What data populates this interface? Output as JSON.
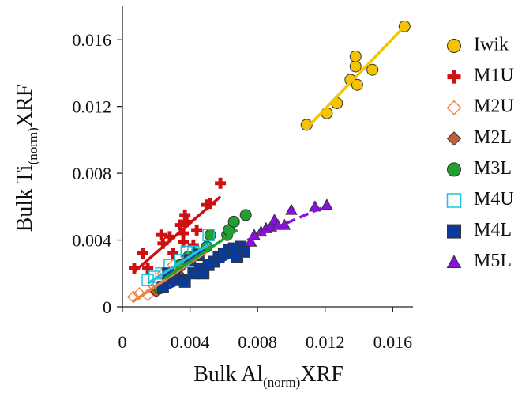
{
  "chart_data": {
    "type": "scatter",
    "x_label": {
      "main": "Bulk Al",
      "subscript": "(norm)",
      "suffix": "XRF"
    },
    "y_label": {
      "main": "Bulk Ti",
      "subscript": "(norm)",
      "suffix": "XRF"
    },
    "xlim": [
      0,
      0.0172
    ],
    "ylim": [
      0,
      0.018
    ],
    "xticks": [
      0,
      0.004,
      0.008,
      0.012,
      0.016
    ],
    "yticks": [
      0,
      0.004,
      0.008,
      0.012,
      0.016
    ],
    "series": [
      {
        "name": "Iwik",
        "color": "#f5c400",
        "marker": "circle",
        "x": [
          0.0109,
          0.0121,
          0.0127,
          0.0135,
          0.0138,
          0.0138,
          0.0139,
          0.0148,
          0.0167
        ],
        "values": [
          0.0109,
          0.0116,
          0.0122,
          0.0136,
          0.0144,
          0.015,
          0.0133,
          0.0142,
          0.0168
        ],
        "trend": {
          "x": [
            0.0109,
            0.0167
          ],
          "y": [
            0.0107,
            0.0168
          ]
        }
      },
      {
        "name": "M1U",
        "color": "#d01010",
        "marker": "cross",
        "x": [
          0.0007,
          0.0012,
          0.0015,
          0.0023,
          0.0024,
          0.0028,
          0.003,
          0.0034,
          0.0036,
          0.0037,
          0.0038,
          0.0036,
          0.0044,
          0.005,
          0.0052,
          0.0058,
          0.0042
        ],
        "values": [
          0.0023,
          0.0032,
          0.0023,
          0.0043,
          0.0038,
          0.0042,
          0.0032,
          0.0049,
          0.0044,
          0.0055,
          0.0051,
          0.0039,
          0.0046,
          0.0061,
          0.0062,
          0.0074,
          0.0037
        ],
        "trend": {
          "x": [
            0.0007,
            0.0058
          ],
          "y": [
            0.0021,
            0.0066
          ]
        }
      },
      {
        "name": "M2U",
        "color": "#f08040",
        "marker": "diamond-open",
        "x": [
          0.00065,
          0.001,
          0.0015,
          0.0019,
          0.0024,
          0.003,
          0.004,
          0.0047
        ],
        "values": [
          0.0006,
          0.0008,
          0.0007,
          0.0012,
          0.002,
          0.0025,
          0.0028,
          0.0033
        ],
        "trend": {
          "x": [
            0.0006,
            0.005
          ],
          "y": [
            0.0003,
            0.0033
          ]
        }
      },
      {
        "name": "M2L",
        "color": "#c0603a",
        "marker": "diamond",
        "x": [
          0.002,
          0.0023,
          0.0028,
          0.0033,
          0.0035
        ],
        "values": [
          0.0009,
          0.0012,
          0.0017,
          0.002,
          0.0024
        ]
      },
      {
        "name": "M3L",
        "color": "#20a030",
        "marker": "circle",
        "x": [
          0.0022,
          0.0027,
          0.0034,
          0.0039,
          0.0044,
          0.005,
          0.0052,
          0.0062,
          0.0063,
          0.0066,
          0.0073
        ],
        "values": [
          0.0011,
          0.0016,
          0.0025,
          0.003,
          0.0032,
          0.0036,
          0.0043,
          0.0043,
          0.0046,
          0.0051,
          0.0055
        ],
        "trend": {
          "x": [
            0.0025,
            0.0068
          ],
          "y": [
            0.0017,
            0.0046
          ]
        }
      },
      {
        "name": "M4U",
        "color": "#20c0e0",
        "marker": "square-open",
        "x": [
          0.0015,
          0.0019,
          0.0023,
          0.0028,
          0.0034,
          0.0038,
          0.0042,
          0.004,
          0.0051
        ],
        "values": [
          0.0016,
          0.0018,
          0.002,
          0.0025,
          0.0028,
          0.0033,
          0.0033,
          0.0027,
          0.0043
        ],
        "trend": {
          "x": [
            0.0015,
            0.0052
          ],
          "y": [
            0.0014,
            0.0038
          ]
        }
      },
      {
        "name": "M4L",
        "color": "#0a3a9a",
        "marker": "square",
        "x": [
          0.0024,
          0.0028,
          0.0031,
          0.0035,
          0.0037,
          0.004,
          0.0042,
          0.0046,
          0.0048,
          0.0051,
          0.0054,
          0.0057,
          0.006,
          0.0063,
          0.0066,
          0.007,
          0.0072,
          0.0068,
          0.0027,
          0.0045
        ],
        "values": [
          0.0012,
          0.0016,
          0.0018,
          0.0016,
          0.0015,
          0.0028,
          0.002,
          0.0023,
          0.002,
          0.0025,
          0.0027,
          0.003,
          0.0032,
          0.0034,
          0.0035,
          0.0036,
          0.0033,
          0.003,
          0.002,
          0.0031
        ],
        "trend": {
          "x": [
            0.0025,
            0.0072
          ],
          "y": [
            0.001,
            0.0034
          ]
        }
      },
      {
        "name": "M5L",
        "color": "#8a10e0",
        "marker": "triangle",
        "x": [
          0.0076,
          0.0078,
          0.0082,
          0.0085,
          0.0088,
          0.009,
          0.0092,
          0.0096,
          0.01,
          0.0114,
          0.0121
        ],
        "values": [
          0.0039,
          0.0043,
          0.0045,
          0.0047,
          0.0048,
          0.0052,
          0.0049,
          0.0049,
          0.0058,
          0.006,
          0.0061
        ],
        "trend": {
          "x": [
            0.0074,
            0.0122
          ],
          "y": [
            0.004,
            0.0061
          ]
        },
        "trend_dashed": true
      }
    ]
  }
}
